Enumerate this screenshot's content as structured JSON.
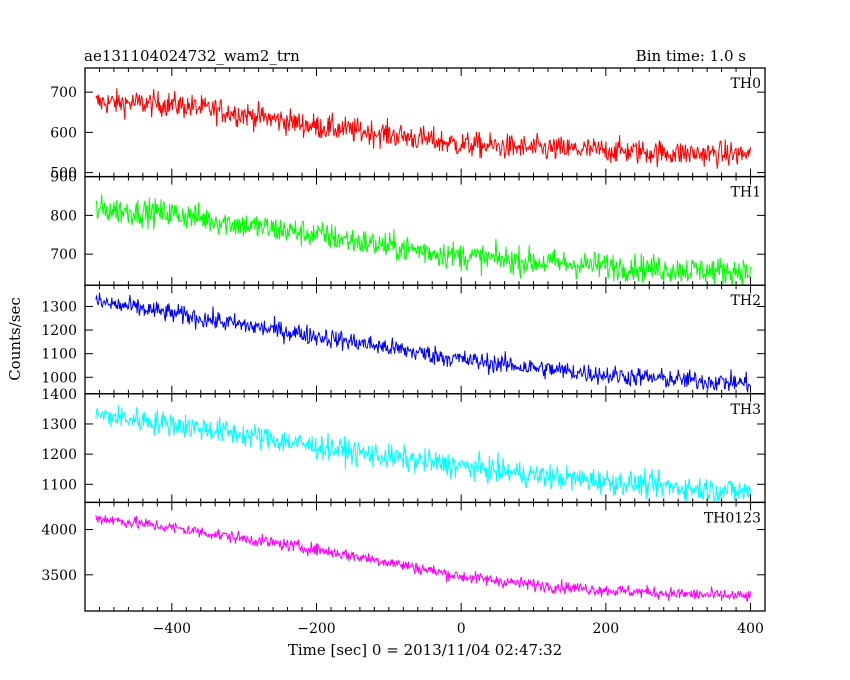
{
  "chart_data": {
    "type": "line",
    "title": "ae131104024732_wam2_trn",
    "bin_time": "Bin time: 1.0 s",
    "xlabel": "Time [sec] 0 = 2013/11/04 02:47:32",
    "ylabel": "Counts/sec",
    "xlim": [
      -520,
      420
    ],
    "x_tick_labels": [
      {
        "value": -400,
        "label": "−400"
      },
      {
        "value": -200,
        "label": "−200"
      },
      {
        "value": 0,
        "label": "0"
      },
      {
        "value": 200,
        "label": "200"
      },
      {
        "value": 400,
        "label": "400"
      }
    ],
    "x_range": [
      -505,
      400
    ],
    "panels": [
      {
        "name": "TH0",
        "color": "#ff0000",
        "ylim": [
          490,
          760
        ],
        "ticks": [
          {
            "value": 700,
            "label": "700"
          },
          {
            "value": 600,
            "label": "600"
          },
          {
            "value": 500,
            "label": "500"
          }
        ],
        "trend": [
          [
            -505,
            675
          ],
          [
            -400,
            670
          ],
          [
            -300,
            645
          ],
          [
            -200,
            615
          ],
          [
            -100,
            595
          ],
          [
            0,
            570
          ],
          [
            100,
            560
          ],
          [
            200,
            555
          ],
          [
            300,
            548
          ],
          [
            400,
            545
          ]
        ],
        "noise": 32
      },
      {
        "name": "TH1",
        "color": "#00ff00",
        "ylim": [
          620,
          900
        ],
        "ticks": [
          {
            "value": 900,
            "label": "900"
          },
          {
            "value": 800,
            "label": "800"
          },
          {
            "value": 700,
            "label": "700"
          }
        ],
        "trend": [
          [
            -505,
            815
          ],
          [
            -400,
            805
          ],
          [
            -300,
            775
          ],
          [
            -200,
            750
          ],
          [
            -100,
            720
          ],
          [
            0,
            695
          ],
          [
            100,
            680
          ],
          [
            200,
            670
          ],
          [
            300,
            660
          ],
          [
            400,
            655
          ]
        ],
        "noise": 36
      },
      {
        "name": "TH2",
        "color": "#0000ff",
        "ylim": [
          930,
          1390
        ],
        "ticks": [
          {
            "value": 1300,
            "label": "1300"
          },
          {
            "value": 1200,
            "label": "1200"
          },
          {
            "value": 1100,
            "label": "1100"
          },
          {
            "value": 1000,
            "label": "1000"
          }
        ],
        "trend": [
          [
            -505,
            1320
          ],
          [
            -400,
            1270
          ],
          [
            -300,
            1220
          ],
          [
            -200,
            1175
          ],
          [
            -100,
            1125
          ],
          [
            0,
            1075
          ],
          [
            100,
            1040
          ],
          [
            200,
            1010
          ],
          [
            300,
            990
          ],
          [
            400,
            975
          ]
        ],
        "noise": 42
      },
      {
        "name": "TH3",
        "color": "#00ffff",
        "ylim": [
          1040,
          1400
        ],
        "ticks": [
          {
            "value": 1400,
            "label": "1400"
          },
          {
            "value": 1300,
            "label": "1300"
          },
          {
            "value": 1200,
            "label": "1200"
          },
          {
            "value": 1100,
            "label": "1100"
          }
        ],
        "trend": [
          [
            -505,
            1330
          ],
          [
            -400,
            1300
          ],
          [
            -300,
            1265
          ],
          [
            -200,
            1225
          ],
          [
            -100,
            1190
          ],
          [
            0,
            1160
          ],
          [
            100,
            1130
          ],
          [
            200,
            1110
          ],
          [
            300,
            1090
          ],
          [
            400,
            1075
          ]
        ],
        "noise": 42
      },
      {
        "name": "TH0123",
        "color": "#ff00ff",
        "ylim": [
          3100,
          4300
        ],
        "ticks": [
          {
            "value": 4000,
            "label": "4000"
          },
          {
            "value": 3500,
            "label": "3500"
          }
        ],
        "trend": [
          [
            -505,
            4130
          ],
          [
            -400,
            4020
          ],
          [
            -300,
            3900
          ],
          [
            -200,
            3780
          ],
          [
            -100,
            3640
          ],
          [
            0,
            3480
          ],
          [
            100,
            3390
          ],
          [
            200,
            3330
          ],
          [
            300,
            3290
          ],
          [
            400,
            3260
          ]
        ],
        "noise": 70
      }
    ]
  }
}
